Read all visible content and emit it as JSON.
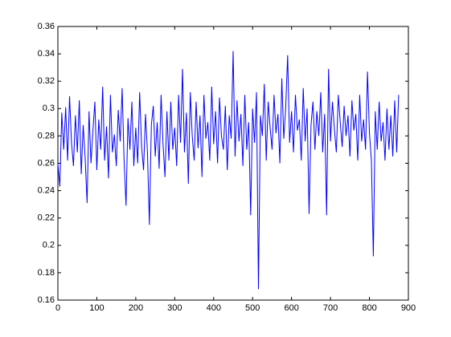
{
  "chart_data": {
    "type": "line",
    "x": [
      0,
      5,
      10,
      15,
      20,
      25,
      30,
      35,
      40,
      45,
      50,
      55,
      60,
      65,
      70,
      75,
      80,
      85,
      90,
      95,
      100,
      105,
      110,
      115,
      120,
      125,
      130,
      135,
      140,
      145,
      150,
      155,
      160,
      165,
      170,
      175,
      180,
      185,
      190,
      195,
      200,
      205,
      210,
      215,
      220,
      225,
      230,
      235,
      240,
      245,
      250,
      255,
      260,
      265,
      270,
      275,
      280,
      285,
      290,
      295,
      300,
      305,
      310,
      315,
      320,
      325,
      330,
      335,
      340,
      345,
      350,
      355,
      360,
      365,
      370,
      375,
      380,
      385,
      390,
      395,
      400,
      405,
      410,
      415,
      420,
      425,
      430,
      435,
      440,
      445,
      450,
      455,
      460,
      465,
      470,
      475,
      480,
      485,
      490,
      495,
      500,
      505,
      510,
      515,
      520,
      525,
      530,
      535,
      540,
      545,
      550,
      555,
      560,
      565,
      570,
      575,
      580,
      585,
      590,
      595,
      600,
      605,
      610,
      615,
      620,
      625,
      630,
      635,
      640,
      645,
      650,
      655,
      660,
      665,
      670,
      675,
      680,
      685,
      690,
      695,
      700,
      705,
      710,
      715,
      720,
      725,
      730,
      735,
      740,
      745,
      750,
      755,
      760,
      765,
      770,
      775,
      780,
      785,
      790,
      795,
      800,
      805,
      810,
      815,
      820,
      825,
      830,
      835,
      840,
      845,
      850,
      855,
      860,
      865,
      870,
      875
    ],
    "series": [
      {
        "color": "#0000ff",
        "values": [
          0.26,
          0.243,
          0.297,
          0.27,
          0.301,
          0.262,
          0.309,
          0.275,
          0.258,
          0.295,
          0.268,
          0.306,
          0.252,
          0.288,
          0.264,
          0.231,
          0.298,
          0.26,
          0.284,
          0.305,
          0.255,
          0.292,
          0.27,
          0.316,
          0.262,
          0.287,
          0.249,
          0.31,
          0.268,
          0.281,
          0.258,
          0.299,
          0.276,
          0.315,
          0.262,
          0.229,
          0.293,
          0.27,
          0.305,
          0.258,
          0.286,
          0.26,
          0.312,
          0.272,
          0.255,
          0.296,
          0.268,
          0.215,
          0.288,
          0.302,
          0.265,
          0.29,
          0.256,
          0.31,
          0.274,
          0.25,
          0.298,
          0.262,
          0.305,
          0.27,
          0.286,
          0.258,
          0.31,
          0.275,
          0.329,
          0.268,
          0.297,
          0.245,
          0.312,
          0.28,
          0.262,
          0.305,
          0.271,
          0.295,
          0.25,
          0.31,
          0.278,
          0.29,
          0.262,
          0.316,
          0.274,
          0.298,
          0.26,
          0.308,
          0.28,
          0.27,
          0.302,
          0.255,
          0.295,
          0.278,
          0.342,
          0.265,
          0.306,
          0.276,
          0.296,
          0.258,
          0.31,
          0.27,
          0.29,
          0.222,
          0.3,
          0.275,
          0.312,
          0.168,
          0.295,
          0.28,
          0.318,
          0.262,
          0.305,
          0.286,
          0.27,
          0.31,
          0.282,
          0.296,
          0.26,
          0.322,
          0.278,
          0.301,
          0.339,
          0.275,
          0.298,
          0.268,
          0.31,
          0.284,
          0.292,
          0.262,
          0.315,
          0.276,
          0.3,
          0.223,
          0.288,
          0.305,
          0.27,
          0.298,
          0.28,
          0.312,
          0.268,
          0.296,
          0.222,
          0.329,
          0.276,
          0.305,
          0.285,
          0.268,
          0.31,
          0.29,
          0.272,
          0.302,
          0.28,
          0.295,
          0.265,
          0.306,
          0.284,
          0.296,
          0.262,
          0.31,
          0.276,
          0.292,
          0.27,
          0.327,
          0.282,
          0.262,
          0.192,
          0.298,
          0.27,
          0.305,
          0.276,
          0.29,
          0.262,
          0.3,
          0.27,
          0.295,
          0.265,
          0.306,
          0.268,
          0.31
        ]
      }
    ],
    "xlim": [
      0,
      900
    ],
    "xticks": [
      0,
      100,
      200,
      300,
      400,
      500,
      600,
      700,
      800,
      900
    ],
    "ylim": [
      0.16,
      0.36
    ],
    "yticks": [
      0.16,
      0.18,
      0.2,
      0.22,
      0.24,
      0.26,
      0.28,
      0.3,
      0.32,
      0.34,
      0.36
    ]
  }
}
